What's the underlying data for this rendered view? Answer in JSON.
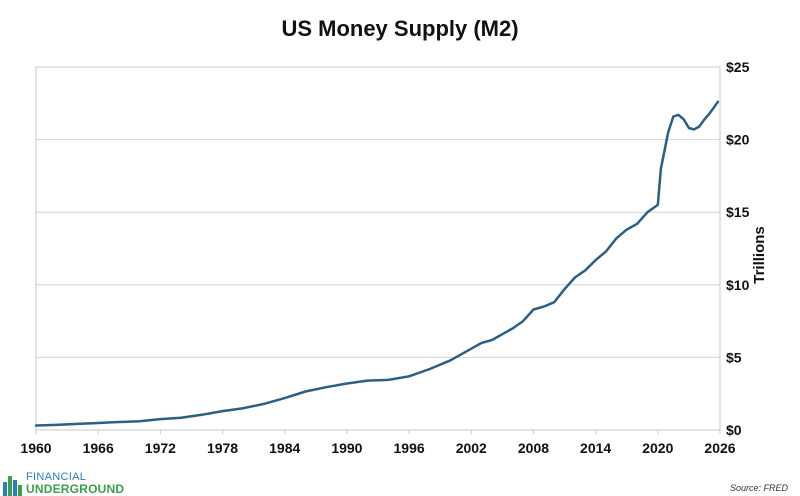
{
  "chart_data": {
    "type": "line",
    "title": "US Money Supply (M2)",
    "ylabel": "Trillions",
    "xlabel": "",
    "xlim": [
      1960,
      2026
    ],
    "ylim": [
      0,
      25
    ],
    "x_ticks": [
      "1960",
      "1966",
      "1972",
      "1978",
      "1984",
      "1990",
      "1996",
      "2002",
      "2008",
      "2014",
      "2020",
      "2026"
    ],
    "y_ticks": [
      "$0",
      "$5",
      "$10",
      "$15",
      "$20",
      "$25"
    ],
    "y_axis_side": "right",
    "grid": "horizontal",
    "line_color": "#2b5f86",
    "series": [
      {
        "x": [
          1960,
          1962,
          1964,
          1966,
          1968,
          1970,
          1972,
          1974,
          1976,
          1978,
          1980,
          1982,
          1984,
          1986,
          1988,
          1990,
          1992,
          1994,
          1996,
          1998,
          2000,
          2002,
          2003,
          2004,
          2005,
          2006,
          2007,
          2008,
          2009,
          2010,
          2011,
          2012,
          2013,
          2014,
          2015,
          2016,
          2017,
          2018,
          2019,
          2020,
          2020.3,
          2021,
          2021.5,
          2022,
          2022.5,
          2023,
          2023.5,
          2024,
          2024.5,
          2025,
          2025.8
        ],
        "y": [
          0.31,
          0.35,
          0.42,
          0.48,
          0.55,
          0.6,
          0.75,
          0.85,
          1.05,
          1.3,
          1.5,
          1.8,
          2.2,
          2.65,
          2.95,
          3.2,
          3.4,
          3.45,
          3.7,
          4.2,
          4.8,
          5.6,
          6.0,
          6.2,
          6.6,
          7.0,
          7.5,
          8.3,
          8.5,
          8.8,
          9.7,
          10.5,
          11.0,
          11.7,
          12.3,
          13.2,
          13.8,
          14.2,
          15.0,
          15.5,
          18.0,
          20.5,
          21.6,
          21.7,
          21.4,
          20.8,
          20.7,
          20.9,
          21.4,
          21.8,
          22.6
        ]
      }
    ]
  },
  "logo": {
    "line1": "FINANCIAL",
    "line2": "UNDERGROUND"
  },
  "source": "Source: FRED"
}
